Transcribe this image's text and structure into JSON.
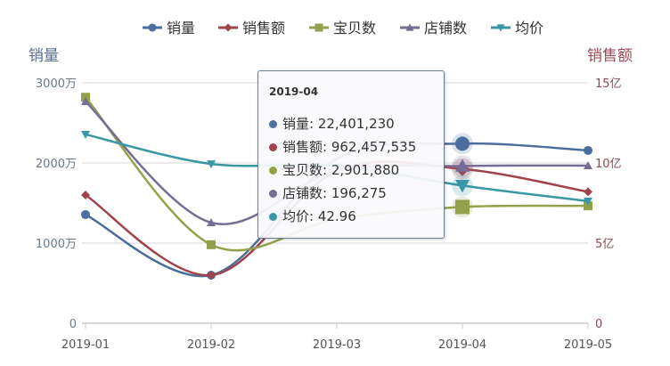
{
  "chart_data": {
    "type": "line",
    "categories": [
      "2019-01",
      "2019-02",
      "2019-03",
      "2019-04",
      "2019-05"
    ],
    "legend_position": "top",
    "grid": true,
    "left_axis": {
      "title": "销量",
      "ticks": [
        "0",
        "1000万",
        "2000万",
        "3000万"
      ],
      "range": [
        0,
        30000000
      ]
    },
    "right_axis": {
      "title": "销售额",
      "ticks": [
        "0",
        "5亿",
        "10亿",
        "15亿"
      ],
      "range": [
        0,
        1500000000
      ]
    },
    "series": [
      {
        "name": "销量",
        "color": "#4a6e9e",
        "marker": "circle",
        "values": [
          13560000,
          6000000,
          20500000,
          22401230,
          21560000
        ]
      },
      {
        "name": "销售额",
        "color": "#a0434b",
        "marker": "diamond",
        "values": [
          800000000,
          300000000,
          950000000,
          962457535,
          820000000
        ]
      },
      {
        "name": "宝贝数",
        "color": "#93a24a",
        "marker": "square",
        "values": [
          5640000,
          1960000,
          2600000,
          2901880,
          2930000
        ]
      },
      {
        "name": "店铺数",
        "color": "#766d96",
        "marker": "triangle",
        "values": [
          276700,
          125600,
          190000,
          196275,
          196700
        ]
      },
      {
        "name": "均价",
        "color": "#3a97a6",
        "marker": "triangle-down",
        "values": [
          58.9,
          49.7,
          49.2,
          42.96,
          38.1
        ]
      }
    ]
  },
  "tooltip": {
    "title": "2019-04",
    "rows": [
      "销量: 22,401,230",
      "销售额: 962,457,535",
      "宝贝数: 2,901,880",
      "店铺数: 196,275",
      "均价: 42.96"
    ]
  }
}
